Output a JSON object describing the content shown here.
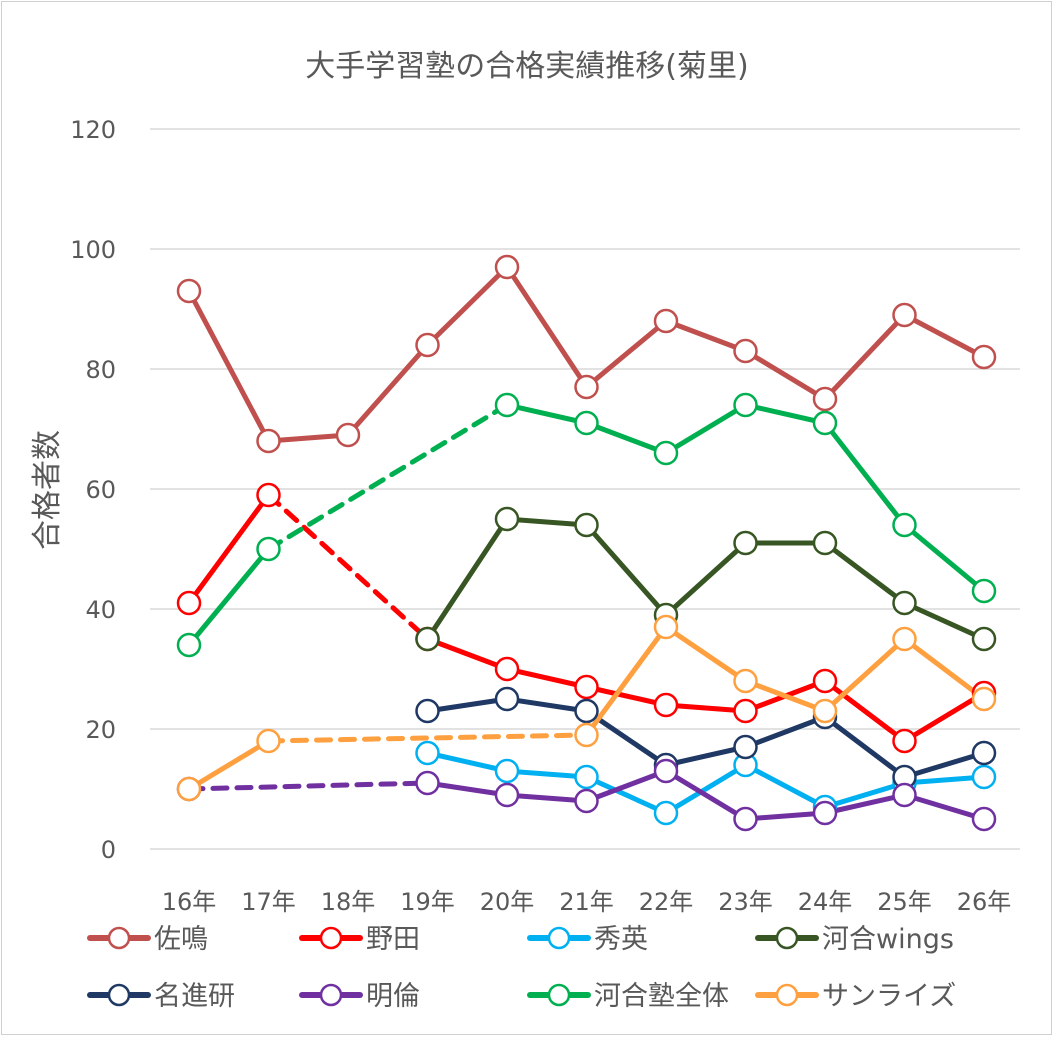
{
  "chart_data": {
    "type": "line",
    "title": "大手学習塾の合格実績推移(菊里)",
    "xlabel": "",
    "ylabel": "合格者数",
    "ylim": [
      0,
      120
    ],
    "yticks": [
      0,
      20,
      40,
      60,
      80,
      100,
      120
    ],
    "ytick_labels": [
      "0",
      "20",
      "40",
      "60",
      "80",
      "100",
      "120"
    ],
    "grid": true,
    "legend_position": "bottom",
    "categories": [
      "16年",
      "17年",
      "18年",
      "19年",
      "20年",
      "21年",
      "22年",
      "23年",
      "24年",
      "25年",
      "26年"
    ],
    "gap_style": "dashed line connecting across missing years",
    "series": [
      {
        "name": "佐鳴",
        "color": "#C0504D",
        "values": [
          93,
          68,
          69,
          84,
          97,
          77,
          88,
          83,
          75,
          89,
          82
        ]
      },
      {
        "name": "野田",
        "color": "#FF0000",
        "values": [
          41,
          59,
          null,
          35,
          30,
          27,
          24,
          23,
          28,
          18,
          26
        ]
      },
      {
        "name": "秀英",
        "color": "#00B0F0",
        "values": [
          null,
          null,
          null,
          16,
          13,
          12,
          6,
          14,
          7,
          11,
          12
        ]
      },
      {
        "name": "河合wings",
        "color": "#375623",
        "values": [
          null,
          null,
          null,
          35,
          55,
          54,
          39,
          51,
          51,
          41,
          35
        ]
      },
      {
        "name": "名進研",
        "color": "#1F3864",
        "values": [
          null,
          null,
          null,
          23,
          25,
          23,
          14,
          17,
          22,
          12,
          16
        ]
      },
      {
        "name": "明倫",
        "color": "#7030A0",
        "values": [
          10,
          null,
          null,
          11,
          9,
          8,
          13,
          5,
          6,
          9,
          5
        ]
      },
      {
        "name": "河合塾全体",
        "color": "#00B050",
        "values": [
          34,
          50,
          null,
          null,
          74,
          71,
          66,
          74,
          71,
          54,
          43
        ]
      },
      {
        "name": "サンライズ",
        "color": "#FFA040",
        "values": [
          10,
          18,
          null,
          null,
          null,
          19,
          37,
          28,
          23,
          35,
          25
        ]
      }
    ]
  }
}
